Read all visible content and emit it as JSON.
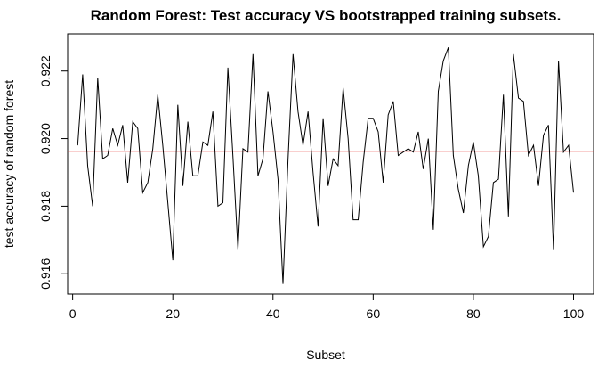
{
  "chart_data": {
    "type": "line",
    "title": "Random Forest: Test accuracy VS bootstrapped training subsets.",
    "xlabel": "Subset",
    "ylabel": "test accuracy of random forest",
    "xlim": [
      -1,
      104
    ],
    "ylim": [
      0.9154,
      0.9231
    ],
    "xticks": [
      0,
      20,
      40,
      60,
      80,
      100
    ],
    "yticks": [
      0.916,
      0.918,
      0.92,
      0.922
    ],
    "ytick_labels": [
      "0.916",
      "0.918",
      "0.920",
      "0.922"
    ],
    "grid": false,
    "reference_line": {
      "y": 0.91963,
      "color": "#e8413c"
    },
    "series": [
      {
        "color": "#000000",
        "x": [
          1,
          2,
          3,
          4,
          5,
          6,
          7,
          8,
          9,
          10,
          11,
          12,
          13,
          14,
          15,
          16,
          17,
          18,
          19,
          20,
          21,
          22,
          23,
          24,
          25,
          26,
          27,
          28,
          29,
          30,
          31,
          32,
          33,
          34,
          35,
          36,
          37,
          38,
          39,
          40,
          41,
          42,
          43,
          44,
          45,
          46,
          47,
          48,
          49,
          50,
          51,
          52,
          53,
          54,
          55,
          56,
          57,
          58,
          59,
          60,
          61,
          62,
          63,
          64,
          65,
          66,
          67,
          68,
          69,
          70,
          71,
          72,
          73,
          74,
          75,
          76,
          77,
          78,
          79,
          80,
          81,
          82,
          83,
          84,
          85,
          86,
          87,
          88,
          89,
          90,
          91,
          92,
          93,
          94,
          95,
          96,
          97,
          98,
          99,
          100
        ],
        "y": [
          0.9198,
          0.9219,
          0.9192,
          0.918,
          0.9218,
          0.9194,
          0.9195,
          0.9203,
          0.9198,
          0.9204,
          0.9187,
          0.9205,
          0.9203,
          0.9184,
          0.9187,
          0.9197,
          0.9213,
          0.9198,
          0.9181,
          0.9164,
          0.921,
          0.9186,
          0.9205,
          0.9189,
          0.9189,
          0.9199,
          0.9198,
          0.9208,
          0.918,
          0.9181,
          0.9221,
          0.9195,
          0.9167,
          0.9197,
          0.9196,
          0.9225,
          0.9189,
          0.9194,
          0.9214,
          0.9202,
          0.9188,
          0.9157,
          0.9194,
          0.9225,
          0.9208,
          0.9198,
          0.9208,
          0.919,
          0.9174,
          0.9206,
          0.9186,
          0.9194,
          0.9192,
          0.9215,
          0.92,
          0.9176,
          0.9176,
          0.9193,
          0.9206,
          0.9206,
          0.9202,
          0.9187,
          0.9207,
          0.9211,
          0.9195,
          0.9196,
          0.9197,
          0.9196,
          0.9202,
          0.9191,
          0.92,
          0.9173,
          0.9214,
          0.9223,
          0.9227,
          0.9195,
          0.9185,
          0.9178,
          0.9192,
          0.9199,
          0.9189,
          0.9168,
          0.9171,
          0.9187,
          0.9188,
          0.9213,
          0.9177,
          0.9225,
          0.9212,
          0.9211,
          0.9195,
          0.9198,
          0.9186,
          0.9201,
          0.9204,
          0.9167,
          0.9223,
          0.9196,
          0.9198,
          0.9184
        ]
      }
    ]
  }
}
